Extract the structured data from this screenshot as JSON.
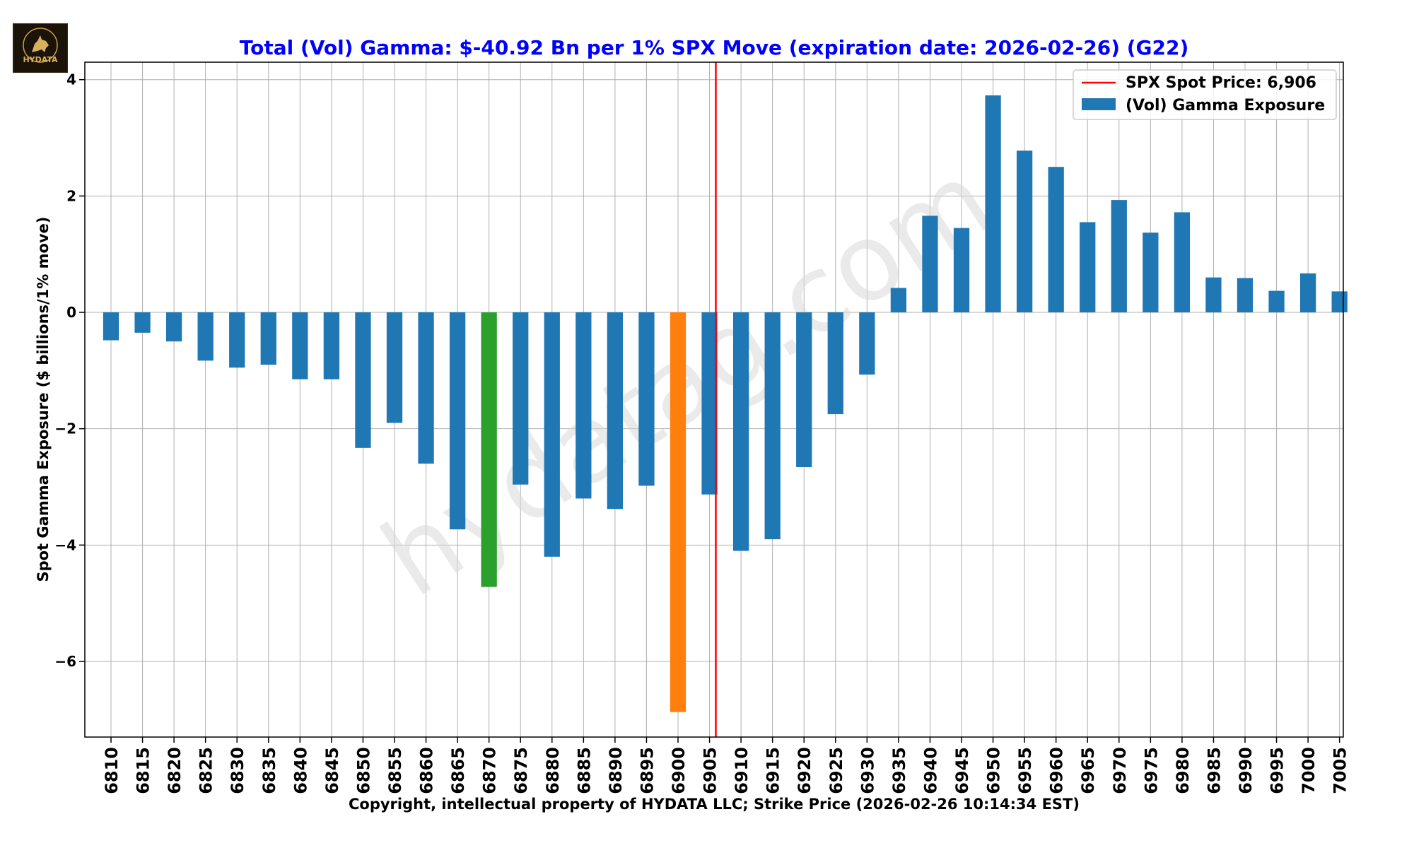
{
  "logo": {
    "text": "HYDATA",
    "icon": "wolf-logo-icon"
  },
  "watermark": "hydatag.com",
  "chart_data": {
    "type": "bar",
    "title": "Total (Vol) Gamma: $-40.92 Bn per 1% SPX Move (expiration date: 2026-02-26) (G22)",
    "xlabel": "Copyright, intellectual property of HYDATA LLC; Strike Price (2026-02-26 10:14:34 EST)",
    "ylabel": "Spot Gamma Exposure ($ billions/1% move)",
    "ylim": [
      -7.3,
      4.3
    ],
    "yticks": [
      4,
      2,
      0,
      -2,
      -4,
      -6
    ],
    "ytick_labels": [
      "4",
      "2",
      "0",
      "−2",
      "−4",
      "−6"
    ],
    "grid": true,
    "legend_position": "top-right",
    "categories": [
      "6810",
      "6815",
      "6820",
      "6825",
      "6830",
      "6835",
      "6840",
      "6845",
      "6850",
      "6855",
      "6860",
      "6865",
      "6870",
      "6875",
      "6880",
      "6885",
      "6890",
      "6895",
      "6900",
      "6905",
      "6910",
      "6915",
      "6920",
      "6925",
      "6930",
      "6935",
      "6940",
      "6945",
      "6950",
      "6955",
      "6960",
      "6965",
      "6970",
      "6975",
      "6980",
      "6985",
      "6990",
      "6995",
      "7000",
      "7005"
    ],
    "values": [
      -0.48,
      -0.35,
      -0.5,
      -0.83,
      -0.95,
      -0.9,
      -1.15,
      -1.15,
      -2.33,
      -1.9,
      -2.6,
      -3.73,
      -4.72,
      -2.96,
      -4.2,
      -3.2,
      -3.38,
      -2.98,
      -6.87,
      -3.13,
      -4.1,
      -3.9,
      -2.66,
      -1.75,
      -1.07,
      0.42,
      1.66,
      1.45,
      3.73,
      2.78,
      2.5,
      1.55,
      1.93,
      1.37,
      1.72,
      0.6,
      0.59,
      0.37,
      0.67,
      0.36
    ],
    "bar_colors": [
      "#1f77b4",
      "#1f77b4",
      "#1f77b4",
      "#1f77b4",
      "#1f77b4",
      "#1f77b4",
      "#1f77b4",
      "#1f77b4",
      "#1f77b4",
      "#1f77b4",
      "#1f77b4",
      "#1f77b4",
      "#2ca02c",
      "#1f77b4",
      "#1f77b4",
      "#1f77b4",
      "#1f77b4",
      "#1f77b4",
      "#ff7f0e",
      "#1f77b4",
      "#1f77b4",
      "#1f77b4",
      "#1f77b4",
      "#1f77b4",
      "#1f77b4",
      "#1f77b4",
      "#1f77b4",
      "#1f77b4",
      "#1f77b4",
      "#1f77b4",
      "#1f77b4",
      "#1f77b4",
      "#1f77b4",
      "#1f77b4",
      "#1f77b4",
      "#1f77b4",
      "#1f77b4",
      "#1f77b4",
      "#1f77b4",
      "#1f77b4"
    ],
    "spot_price": 6906,
    "series": [
      {
        "name": "(Vol) Gamma Exposure",
        "color": "#1f77b4"
      }
    ],
    "spot_line": {
      "label": "SPX Spot Price: 6,906",
      "color": "#ff0000"
    },
    "title_color": "#0000ff"
  }
}
